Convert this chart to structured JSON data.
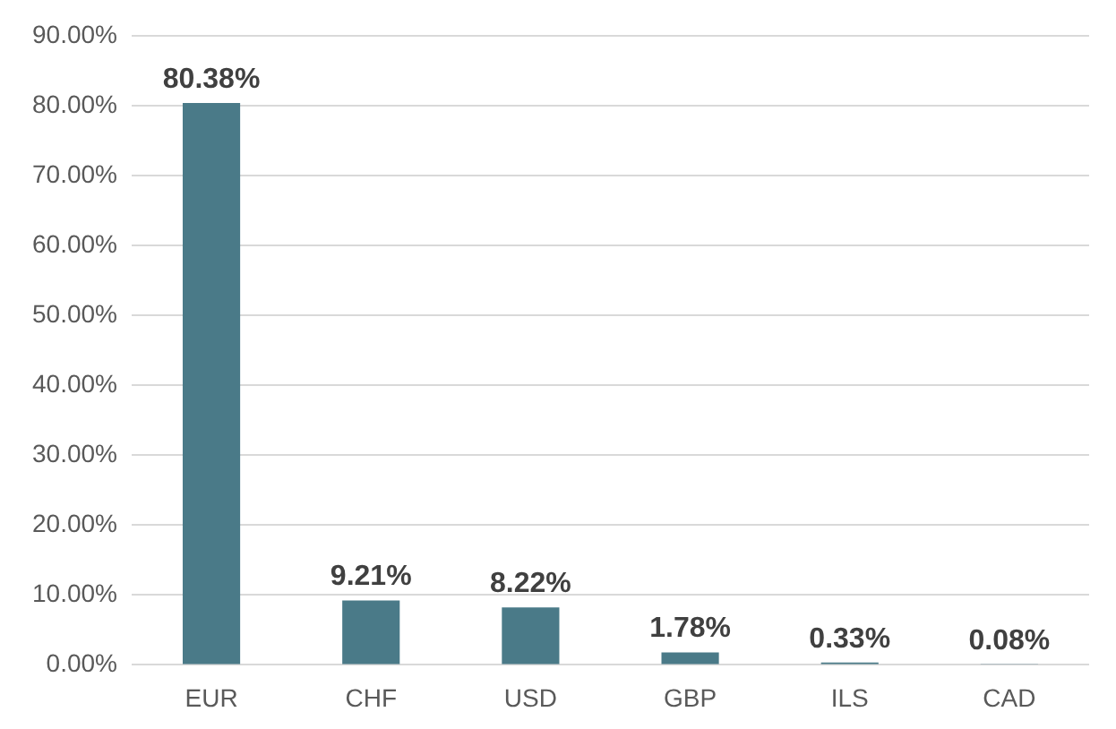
{
  "chart_data": {
    "type": "bar",
    "categories": [
      "EUR",
      "CHF",
      "USD",
      "GBP",
      "ILS",
      "CAD"
    ],
    "values": [
      80.38,
      9.21,
      8.22,
      1.78,
      0.33,
      0.08
    ],
    "value_labels": [
      "80.38%",
      "9.21%",
      "8.22%",
      "1.78%",
      "0.33%",
      "0.08%"
    ],
    "color": "#4a7a88",
    "ylim": [
      0,
      90
    ],
    "yticks": [
      {
        "value": 0,
        "label": "0.00%"
      },
      {
        "value": 10,
        "label": "10.00%"
      },
      {
        "value": 20,
        "label": "20.00%"
      },
      {
        "value": 30,
        "label": "30.00%"
      },
      {
        "value": 40,
        "label": "40.00%"
      },
      {
        "value": 50,
        "label": "50.00%"
      },
      {
        "value": 60,
        "label": "60.00%"
      },
      {
        "value": 70,
        "label": "70.00%"
      },
      {
        "value": 80,
        "label": "80.00%"
      },
      {
        "value": 90,
        "label": "90.00%"
      }
    ],
    "grid": "y"
  }
}
